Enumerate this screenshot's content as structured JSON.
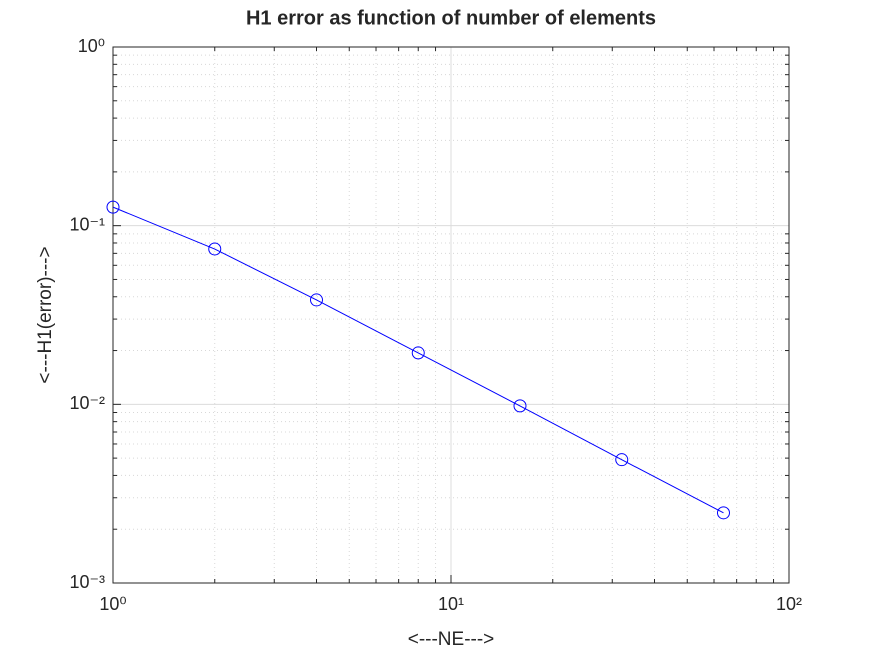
{
  "chart_data": {
    "type": "line",
    "title": "H1 error as function of number of elements",
    "x_label": "<---NE--->",
    "y_label": "<---H1(error)--->",
    "x": [
      1,
      2,
      4,
      8,
      16,
      32,
      64
    ],
    "series": [
      {
        "color": "#0000ff",
        "values": [
          0.127,
          0.074,
          0.0384,
          0.0194,
          0.0098,
          0.0049,
          0.00247
        ]
      }
    ],
    "x_log": true,
    "y_log": true,
    "xlim": [
      1,
      100
    ],
    "ylim": [
      0.001,
      1
    ],
    "xticks": [
      {
        "value": 1,
        "label": "10⁰"
      },
      {
        "value": 10,
        "label": "10¹"
      },
      {
        "value": 100,
        "label": "10²"
      }
    ],
    "yticks": [
      {
        "value": 0.001,
        "label": "10⁻³"
      },
      {
        "value": 0.01,
        "label": "10⁻²"
      },
      {
        "value": 0.1,
        "label": "10⁻¹"
      },
      {
        "value": 1,
        "label": "10⁰"
      }
    ],
    "grid": true,
    "minor_grid": true,
    "marker": "circle"
  }
}
